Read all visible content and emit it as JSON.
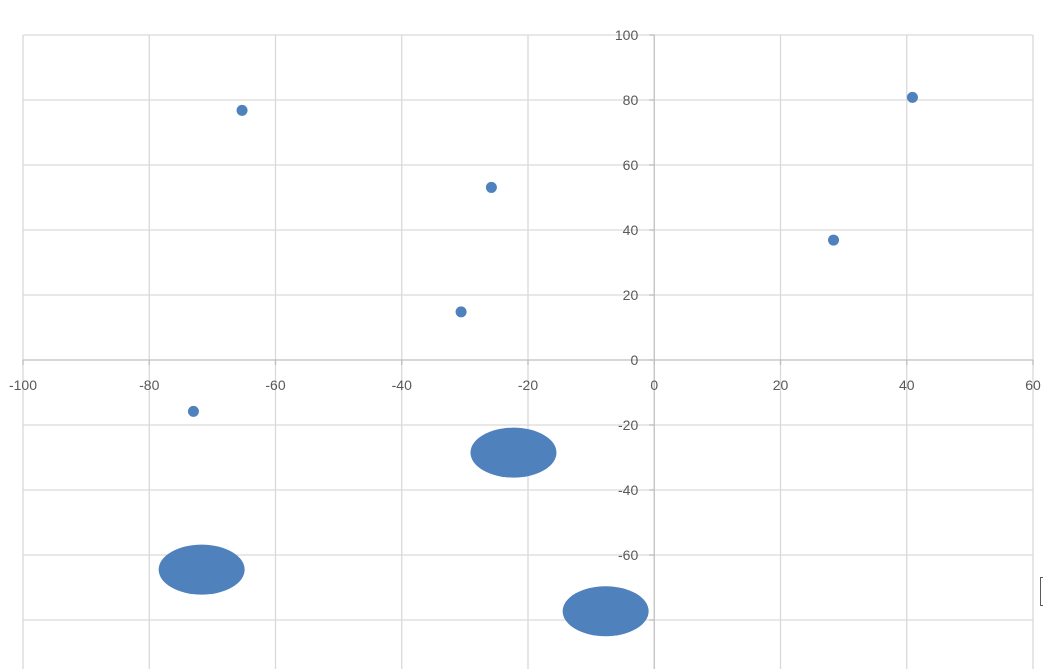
{
  "chart_data": {
    "type": "scatter",
    "title": "",
    "xlabel": "",
    "ylabel": "",
    "xlim": [
      -100,
      60
    ],
    "ylim": [
      -100,
      100
    ],
    "x_ticks": [
      -100,
      -80,
      -60,
      -40,
      -20,
      0,
      20,
      40,
      60
    ],
    "y_ticks": [
      100,
      80,
      60,
      40,
      20,
      0,
      -20,
      -40,
      -60,
      -80
    ],
    "grid": true,
    "legend": "none",
    "series": [
      {
        "color": "#4f81bd",
        "points": [
          {
            "x": -65.3,
            "y": 76.8
          },
          {
            "x": -25.8,
            "y": 53.1
          },
          {
            "x": 28.4,
            "y": 36.9
          },
          {
            "x": 40.9,
            "y": 80.8
          },
          {
            "x": -30.6,
            "y": 14.8
          },
          {
            "x": -73.0,
            "y": -15.8
          },
          {
            "x": -22.3,
            "y": -28.5,
            "enlarged": true
          },
          {
            "x": -71.7,
            "y": -64.5,
            "enlarged": true
          },
          {
            "x": -7.7,
            "y": -77.3,
            "enlarged": true
          }
        ]
      }
    ]
  }
}
